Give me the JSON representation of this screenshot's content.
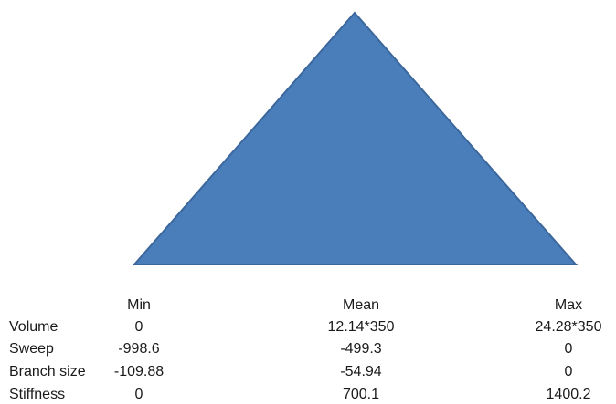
{
  "shape": {
    "fill": "#4a7ebb",
    "stroke": "#3b679c"
  },
  "table": {
    "headers": {
      "min": "Min",
      "mean": "Mean",
      "max": "Max"
    },
    "rows": [
      {
        "label": "Volume",
        "min": "0",
        "mean": "12.14*350",
        "max": "24.28*350"
      },
      {
        "label": "Sweep",
        "min": "-998.6",
        "mean": "-499.3",
        "max": "0"
      },
      {
        "label": "Branch size",
        "min": "-109.88",
        "mean": "-54.94",
        "max": "0"
      },
      {
        "label": "Stiffness",
        "min": "0",
        "mean": "700.1",
        "max": "1400.2"
      }
    ]
  }
}
